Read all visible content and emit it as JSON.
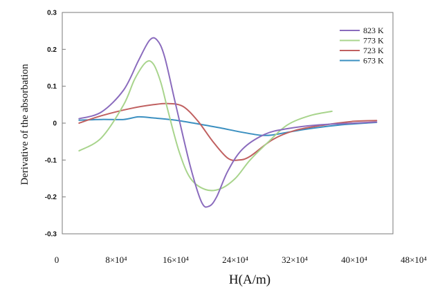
{
  "chart_data": {
    "type": "line",
    "xlabel": "H(A/m)",
    "ylabel": "Derivative of the absorbation",
    "xlim": [
      0,
      480000
    ],
    "ylim": [
      -0.3,
      0.3
    ],
    "y_ticks": [
      "0.3",
      "0.2",
      "0.1",
      "0",
      "-0.1",
      "-0.2",
      "-0.3"
    ],
    "y_tick_values": [
      0.3,
      0.2,
      0.1,
      0,
      -0.1,
      -0.2,
      -0.3
    ],
    "x_ticks": [
      "0",
      "8×10⁴",
      "16×10⁴",
      "24×10⁴",
      "32×10⁴",
      "40×10⁴",
      "48×10⁴"
    ],
    "x_tick_values": [
      0,
      80000,
      160000,
      240000,
      320000,
      400000,
      480000
    ],
    "grid": false,
    "legend_position": "top-right",
    "series": [
      {
        "name": "823 K",
        "color": "#8a6bbd",
        "x": [
          30000,
          60000,
          90000,
          110000,
          125000,
          135000,
          145000,
          160000,
          180000,
          195000,
          205000,
          215000,
          230000,
          250000,
          280000,
          310000,
          350000,
          400000,
          430000
        ],
        "y": [
          0.012,
          0.03,
          0.09,
          0.17,
          0.225,
          0.225,
          0.18,
          0.05,
          -0.12,
          -0.215,
          -0.225,
          -0.2,
          -0.13,
          -0.07,
          -0.03,
          -0.015,
          -0.005,
          0.0,
          0.003
        ]
      },
      {
        "name": "773 K",
        "color": "#a8d48c",
        "x": [
          30000,
          60000,
          90000,
          105000,
          120000,
          130000,
          140000,
          150000,
          165000,
          180000,
          200000,
          220000,
          240000,
          260000,
          285000,
          310000,
          340000,
          370000
        ],
        "y": [
          -0.075,
          -0.04,
          0.05,
          0.12,
          0.165,
          0.16,
          0.11,
          0.03,
          -0.08,
          -0.15,
          -0.18,
          -0.178,
          -0.15,
          -0.1,
          -0.05,
          -0.005,
          0.02,
          0.032
        ]
      },
      {
        "name": "723 K",
        "color": "#c06060",
        "x": [
          30000,
          60000,
          100000,
          130000,
          150000,
          170000,
          190000,
          210000,
          230000,
          245000,
          260000,
          290000,
          320000,
          360000,
          400000,
          430000
        ],
        "y": [
          0.0,
          0.02,
          0.04,
          0.05,
          0.053,
          0.045,
          0.005,
          -0.05,
          -0.095,
          -0.1,
          -0.09,
          -0.045,
          -0.02,
          -0.005,
          0.005,
          0.007
        ]
      },
      {
        "name": "673 K",
        "color": "#3a8fc0",
        "x": [
          30000,
          60000,
          90000,
          110000,
          130000,
          160000,
          190000,
          220000,
          250000,
          275000,
          290000,
          310000,
          340000,
          380000,
          430000
        ],
        "y": [
          0.008,
          0.01,
          0.01,
          0.017,
          0.014,
          0.008,
          -0.002,
          -0.013,
          -0.025,
          -0.033,
          -0.032,
          -0.025,
          -0.015,
          -0.005,
          0.002
        ]
      }
    ]
  }
}
